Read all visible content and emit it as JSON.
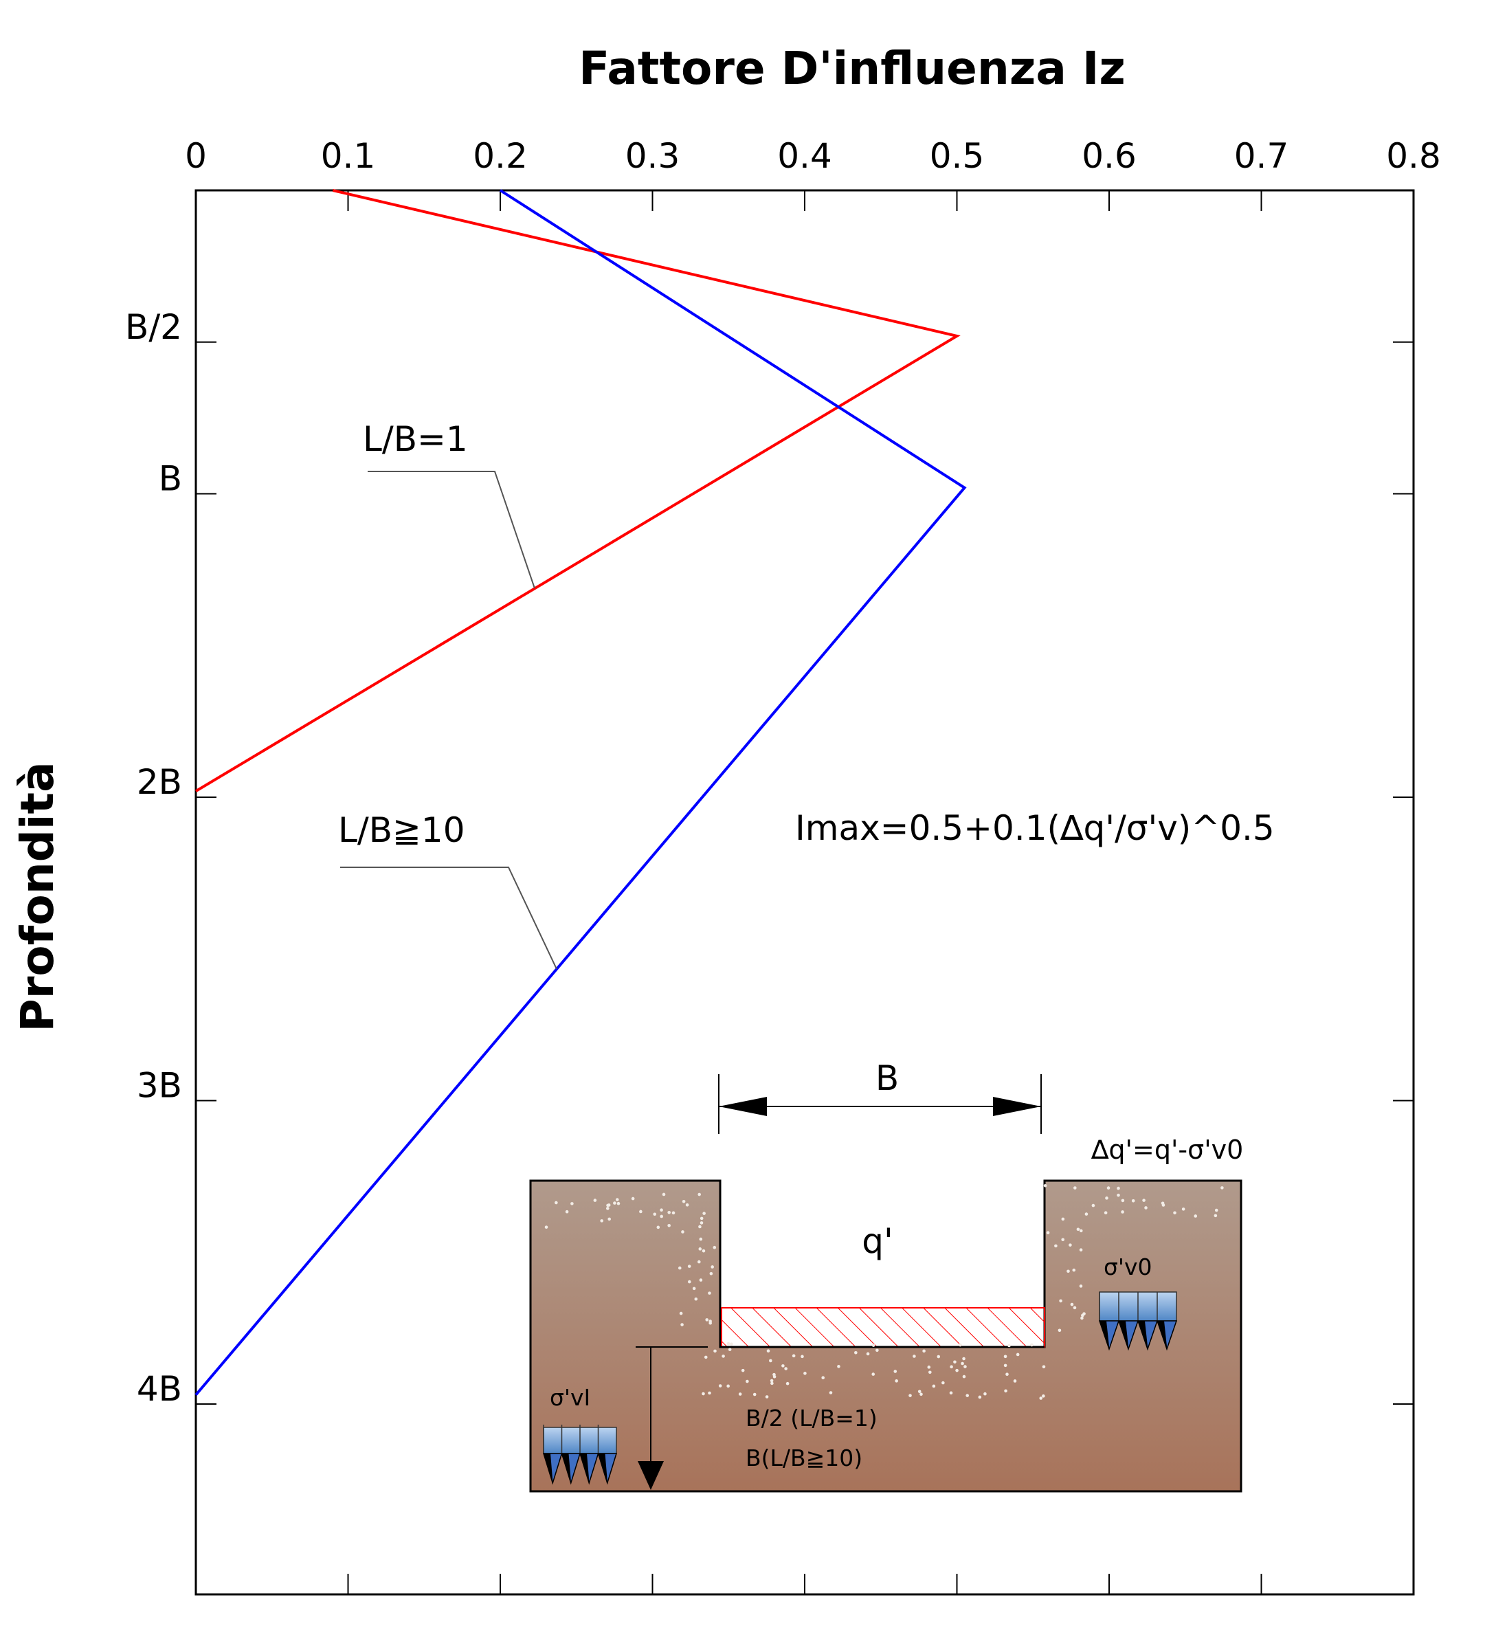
{
  "chart_data": {
    "type": "line",
    "title": "Fattore D'influenza Iz",
    "xlabel": "",
    "ylabel": "Profondità",
    "xlim": [
      0,
      0.8
    ],
    "x_ticks": [
      "0",
      "0.1",
      "0.2",
      "0.3",
      "0.4",
      "0.5",
      "0.6",
      "0.7",
      "0.8"
    ],
    "x_tick_values": [
      0,
      0.1,
      0.2,
      0.3,
      0.4,
      0.5,
      0.6,
      0.7,
      0.8
    ],
    "x_axis_position": "top",
    "ylim": [
      0,
      4.65
    ],
    "y_reversed": true,
    "y_ticks": [
      {
        "label": "B/2",
        "value": 0.5
      },
      {
        "label": "B",
        "value": 1
      },
      {
        "label": "2B",
        "value": 2
      },
      {
        "label": "3B",
        "value": 3
      },
      {
        "label": "4B",
        "value": 4
      }
    ],
    "grid": false,
    "series": [
      {
        "name": "L/B=1",
        "color": "#ff0000",
        "x": [
          0.09,
          0.5,
          0
        ],
        "y": [
          0,
          0.48,
          1.98
        ]
      },
      {
        "name": "L/B≧10",
        "color": "#0000ff",
        "x": [
          0.2,
          0.505,
          0
        ],
        "y": [
          0,
          0.98,
          3.97
        ]
      }
    ],
    "annotations": {
      "formula": "Imax=0.5+0.1(∆q'/σ'v)^0.5",
      "label_lb1": "L/B=1",
      "label_lb10": "L/B≧10"
    },
    "inset": {
      "width_label": "B",
      "q_label": "q'",
      "delta_q_label": "∆q'=q'-σ'v0",
      "sigma_v0_label": "σ'v0",
      "sigma_vi_label": "σ'vI",
      "depth_label_1": "B/2 (L/B=1)",
      "depth_label_2": "B(L/B≧10)"
    }
  }
}
